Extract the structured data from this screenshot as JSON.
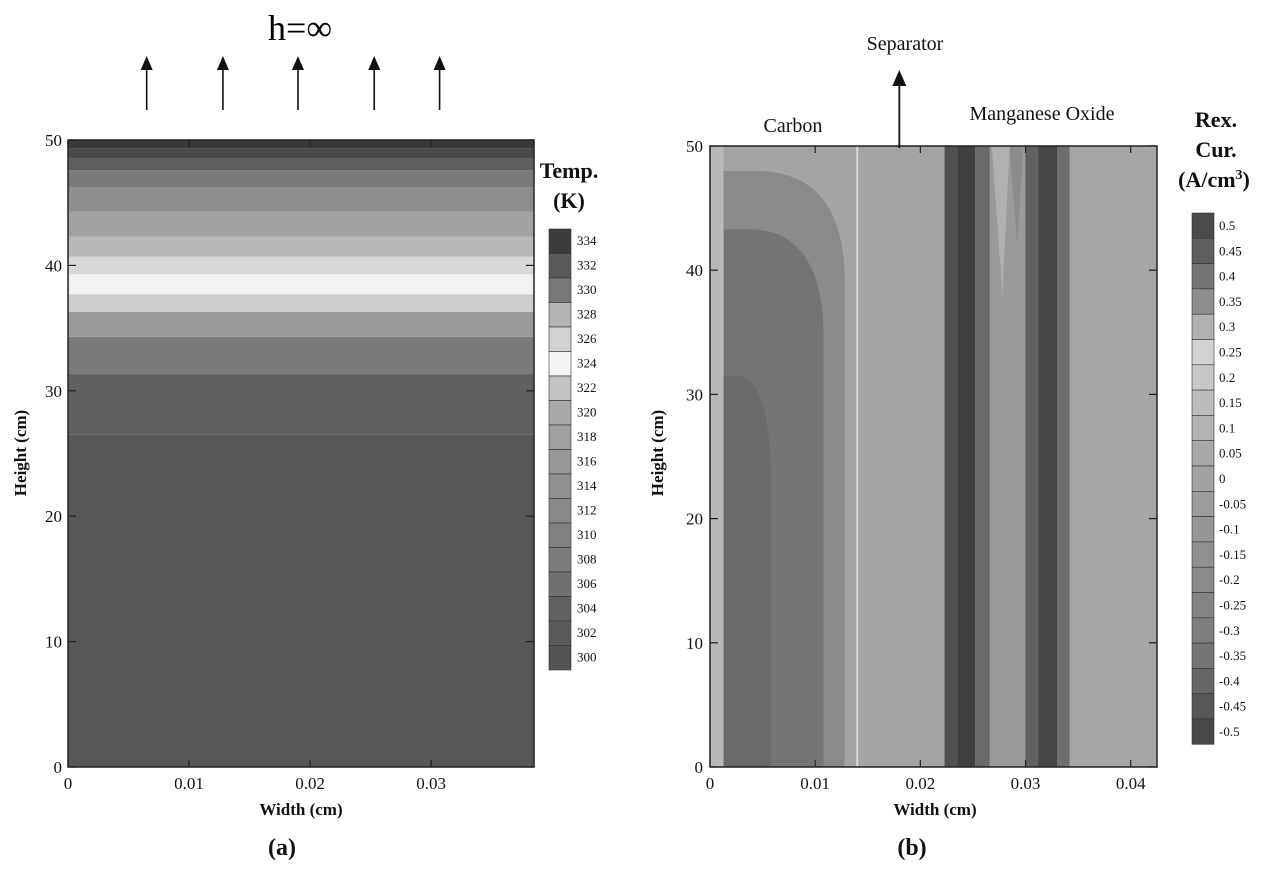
{
  "chart_data": [
    {
      "type": "heatmap",
      "panel_label": "(a)",
      "top_annotation": "h=∞",
      "xlabel": "Width (cm)",
      "ylabel": "Height (cm)",
      "xlim": [
        0,
        0.0385
      ],
      "ylim": [
        0,
        50
      ],
      "x_ticks": [
        "0",
        "0.01",
        "0.02",
        "0.03"
      ],
      "x_tick_values": [
        0,
        0.01,
        0.02,
        0.03
      ],
      "y_ticks": [
        "0",
        "10",
        "20",
        "30",
        "40",
        "50"
      ],
      "y_tick_values": [
        0,
        10,
        20,
        30,
        40,
        50
      ],
      "arrows_x": [
        0.0065,
        0.0128,
        0.019,
        0.0253,
        0.0307
      ],
      "colorbar": {
        "title_line1": "Temp.",
        "title_line2": "(K)",
        "levels": [
          "334",
          "332",
          "330",
          "328",
          "326",
          "324",
          "322",
          "320",
          "318",
          "316",
          "314",
          "312",
          "310",
          "308",
          "306",
          "304",
          "302",
          "300"
        ],
        "colors": [
          "#3c3c3c",
          "#5a5a5a",
          "#787878",
          "#b4b4b4",
          "#d2d2d2",
          "#f5f5f5",
          "#c2c2c2",
          "#a8a8a8",
          "#a0a0a0",
          "#989898",
          "#909090",
          "#888888",
          "#828282",
          "#7c7c7c",
          "#707070",
          "#626262",
          "#5a5a5a",
          "#545454"
        ]
      },
      "bands": [
        {
          "y0": 0,
          "y1": 26.5,
          "color": "#575757"
        },
        {
          "y0": 26.5,
          "y1": 31.3,
          "color": "#606060"
        },
        {
          "y0": 31.3,
          "y1": 34.3,
          "color": "#7a7a7a"
        },
        {
          "y0": 34.3,
          "y1": 36.3,
          "color": "#9a9a9a"
        },
        {
          "y0": 36.3,
          "y1": 37.7,
          "color": "#cfcfcf"
        },
        {
          "y0": 37.7,
          "y1": 39.3,
          "color": "#f2f2f2"
        },
        {
          "y0": 39.3,
          "y1": 40.7,
          "color": "#d8d8d8"
        },
        {
          "y0": 40.7,
          "y1": 42.3,
          "color": "#b8b8b8"
        },
        {
          "y0": 42.3,
          "y1": 44.3,
          "color": "#a2a2a2"
        },
        {
          "y0": 44.3,
          "y1": 46.2,
          "color": "#8e8e8e"
        },
        {
          "y0": 46.2,
          "y1": 47.6,
          "color": "#7a7a7a"
        },
        {
          "y0": 47.6,
          "y1": 48.5,
          "color": "#5e5e5e"
        },
        {
          "y0": 48.5,
          "y1": 49.3,
          "color": "#4a4a4a"
        },
        {
          "y0": 49.3,
          "y1": 50,
          "color": "#3a3a3a"
        }
      ]
    },
    {
      "type": "heatmap",
      "panel_label": "(b)",
      "xlabel": "Width (cm)",
      "ylabel": "Height (cm)",
      "xlim": [
        0,
        0.0425
      ],
      "ylim": [
        0,
        50
      ],
      "x_ticks": [
        "0",
        "0.01",
        "0.02",
        "0.03",
        "0.04"
      ],
      "x_tick_values": [
        0,
        0.01,
        0.02,
        0.03,
        0.04
      ],
      "y_ticks": [
        "0",
        "10",
        "20",
        "30",
        "40",
        "50"
      ],
      "y_tick_values": [
        0,
        10,
        20,
        30,
        40,
        50
      ],
      "regions": {
        "carbon": "Carbon",
        "separator": "Separator",
        "manganese_oxide": "Manganese Oxide"
      },
      "region_bounds": {
        "carbon": [
          0.0013,
          0.014
        ],
        "separator": [
          0.014,
          0.0223
        ],
        "manganese_oxide": [
          0.0223,
          0.0425
        ]
      },
      "separator_arrow_x": 0.018,
      "colorbar": {
        "title_line1": "Rex.",
        "title_line2": "Cur.",
        "title_line3": "(A/cm",
        "title_sup": "3",
        "title_close": ")",
        "levels": [
          "0.5",
          "0.45",
          "0.4",
          "0.35",
          "0.3",
          "0.25",
          "0.2",
          "0.15",
          "0.1",
          "0.05",
          "0",
          "-0.05",
          "-0.1",
          "-0.15",
          "-0.2",
          "-0.25",
          "-0.3",
          "-0.35",
          "-0.4",
          "-0.45",
          "-0.5"
        ],
        "colors": [
          "#4a4a4a",
          "#5e5e5e",
          "#747474",
          "#8e8e8e",
          "#b0b0b0",
          "#d2d2d2",
          "#c8c8c8",
          "#bcbcbc",
          "#b2b2b2",
          "#a8a8a8",
          "#a2a2a2",
          "#9c9c9c",
          "#969696",
          "#909090",
          "#8a8a8a",
          "#848484",
          "#7e7e7e",
          "#747474",
          "#666666",
          "#575757",
          "#484848"
        ]
      },
      "background_color": "#a4a4a4",
      "mno_bands": [
        {
          "x0": 0.0223,
          "x1": 0.0235,
          "color": "#505050"
        },
        {
          "x0": 0.0235,
          "x1": 0.0252,
          "color": "#404040"
        },
        {
          "x0": 0.0252,
          "x1": 0.0266,
          "color": "#6a6a6a"
        },
        {
          "x0": 0.0266,
          "x1": 0.03,
          "color": "#9a9a9a"
        },
        {
          "x0": 0.03,
          "x1": 0.0312,
          "color": "#606060"
        },
        {
          "x0": 0.0312,
          "x1": 0.033,
          "color": "#464646"
        },
        {
          "x0": 0.033,
          "x1": 0.0342,
          "color": "#6e6e6e"
        },
        {
          "x0": 0.0342,
          "x1": 0.0425,
          "color": "#a6a6a6"
        }
      ],
      "carbon_contours": [
        {
          "x_right": 0.0128,
          "y_top": 48.0,
          "color": "#8a8a8a"
        },
        {
          "x_right": 0.0108,
          "y_top": 43.3,
          "color": "#747474"
        },
        {
          "x_right": 0.0058,
          "y_top": 31.5,
          "color": "#6a6a6a"
        }
      ]
    }
  ]
}
